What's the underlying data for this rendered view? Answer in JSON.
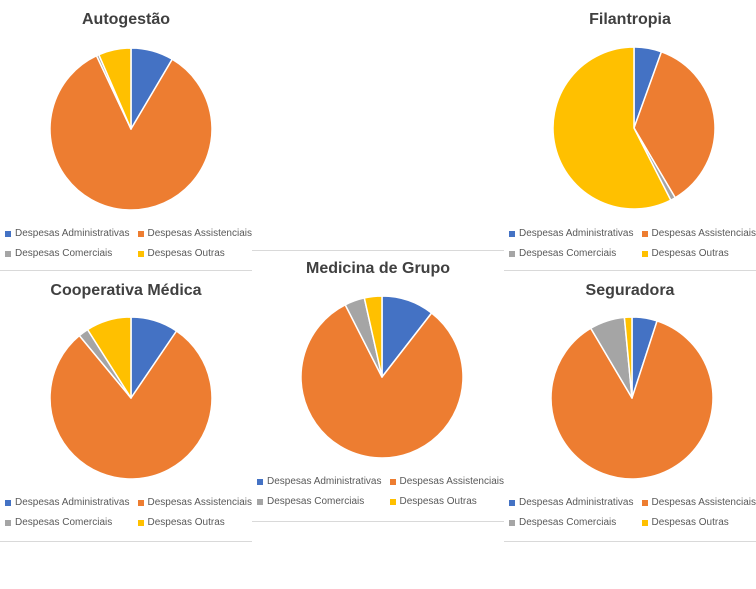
{
  "colors": {
    "administrativas": "#4472c4",
    "assistenciais": "#ed7d31",
    "comerciais": "#a5a5a5",
    "outras": "#ffc000"
  },
  "legend": {
    "administrativas": "Despesas Administrativas",
    "assistenciais": "Despesas Assistenciais",
    "comerciais": "Despesas Comerciais",
    "outras": "Despesas Outras"
  },
  "chart_data": [
    {
      "type": "pie",
      "title": "Autogestão",
      "categories": [
        "Despesas Administrativas",
        "Despesas Assistenciais",
        "Despesas Comerciais",
        "Despesas Outras"
      ],
      "values": [
        8.5,
        84.5,
        0.5,
        6.5
      ]
    },
    {
      "type": "pie",
      "title": "Filantropia",
      "categories": [
        "Despesas Administrativas",
        "Despesas Assistenciais",
        "Despesas Comerciais",
        "Despesas Outras"
      ],
      "values": [
        5.5,
        36,
        1,
        57.5
      ]
    },
    {
      "type": "pie",
      "title": "Cooperativa Médica",
      "categories": [
        "Despesas Administrativas",
        "Despesas Assistenciais",
        "Despesas Comerciais",
        "Despesas Outras"
      ],
      "values": [
        9.5,
        79.5,
        2,
        9
      ]
    },
    {
      "type": "pie",
      "title": "Medicina de Grupo",
      "categories": [
        "Despesas Administrativas",
        "Despesas Assistenciais",
        "Despesas Comerciais",
        "Despesas Outras"
      ],
      "values": [
        10.5,
        82,
        4,
        3.5
      ]
    },
    {
      "type": "pie",
      "title": "Seguradora",
      "categories": [
        "Despesas Administrativas",
        "Despesas Assistenciais",
        "Despesas Comerciais",
        "Despesas Outras"
      ],
      "values": [
        5,
        86.5,
        7,
        1.5
      ]
    }
  ]
}
